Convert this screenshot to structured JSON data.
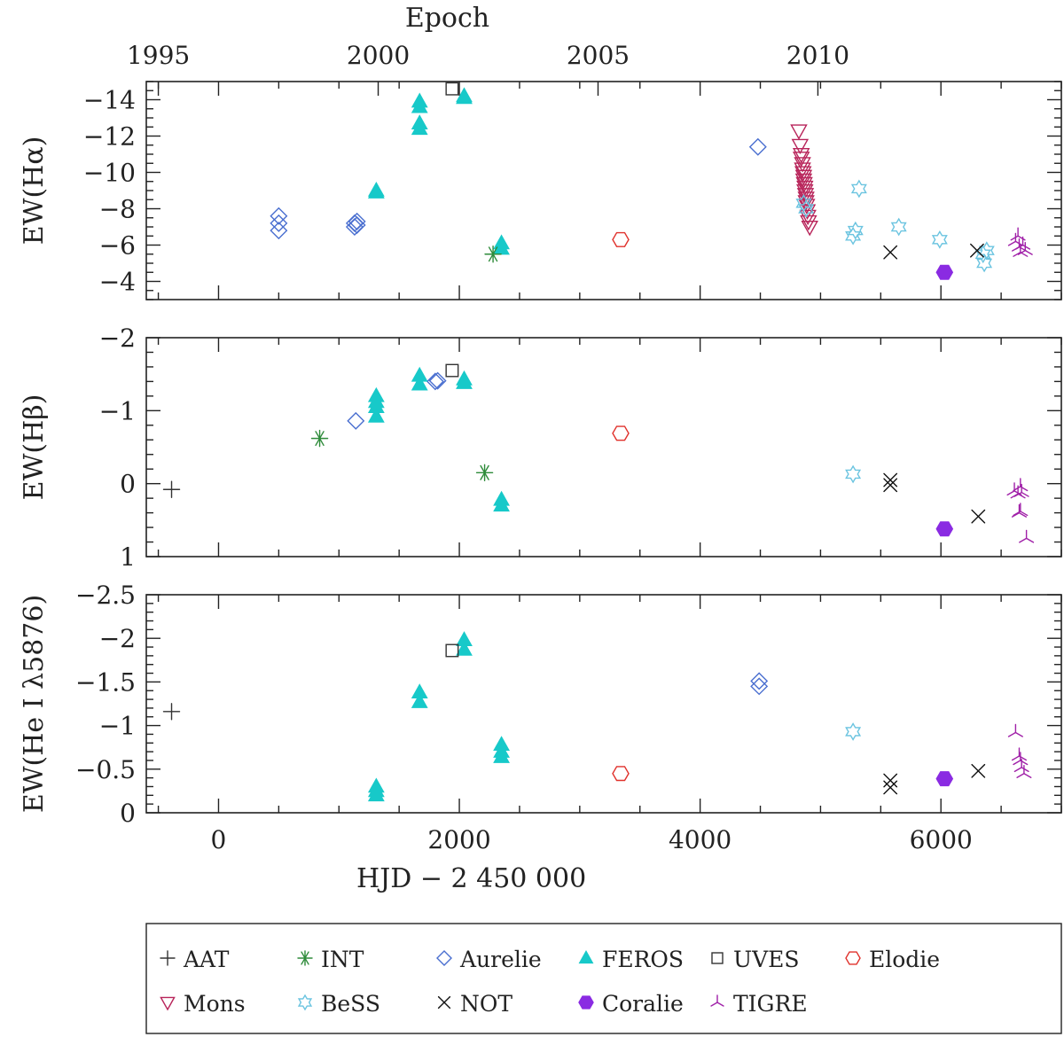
{
  "chart_data": {
    "type": "scatter",
    "title": "",
    "top_axis": {
      "label": "Epoch",
      "ticks": [
        {
          "label": "1995",
          "hjd": -500
        },
        {
          "label": "2000",
          "hjd": 1326
        },
        {
          "label": "2005",
          "hjd": 3152
        },
        {
          "label": "2010",
          "hjd": 4978
        }
      ]
    },
    "xlabel": "HJD  −  2 450 000",
    "xlim": [
      -600,
      7000
    ],
    "x_ticks": [
      0,
      2000,
      4000,
      6000
    ],
    "x_tick_labels": [
      "0",
      "2000",
      "4000",
      "6000"
    ],
    "panels": [
      {
        "id": "halpha",
        "ylabel": "EW(Hα)",
        "ylim": [
          -15,
          -3
        ],
        "y_ticks": [
          -14,
          -12,
          -10,
          -8,
          -6,
          -4
        ],
        "y_tick_labels": [
          "−14",
          "−12",
          "−10",
          "−8",
          "−6",
          "−4"
        ],
        "series": [
          {
            "name": "Aurelie",
            "points": [
              [
                500,
                -7.6
              ],
              [
                500,
                -7.2
              ],
              [
                500,
                -6.8
              ],
              [
                1130,
                -7.2
              ],
              [
                1130,
                -7.0
              ],
              [
                1150,
                -7.3
              ],
              [
                1150,
                -7.1
              ],
              [
                4480,
                -11.4
              ]
            ]
          },
          {
            "name": "FEROS",
            "points": [
              [
                1310,
                -8.9
              ],
              [
                1310,
                -9.0
              ],
              [
                1670,
                -13.6
              ],
              [
                1670,
                -13.9
              ],
              [
                1670,
                -12.4
              ],
              [
                1670,
                -12.7
              ],
              [
                2040,
                -14.1
              ],
              [
                2040,
                -14.2
              ],
              [
                2350,
                -5.8
              ],
              [
                2350,
                -6.1
              ]
            ]
          },
          {
            "name": "INT",
            "points": [
              [
                2280,
                -5.5
              ]
            ]
          },
          {
            "name": "UVES",
            "points": [
              [
                1940,
                -14.6
              ]
            ]
          },
          {
            "name": "Elodie",
            "points": [
              [
                3340,
                -6.3
              ]
            ]
          },
          {
            "name": "Mons",
            "points": [
              [
                4820,
                -12.3
              ],
              [
                4830,
                -11.5
              ],
              [
                4840,
                -11.0
              ],
              [
                4840,
                -10.8
              ],
              [
                4850,
                -10.5
              ],
              [
                4850,
                -10.2
              ],
              [
                4855,
                -10.0
              ],
              [
                4860,
                -9.8
              ],
              [
                4860,
                -9.6
              ],
              [
                4865,
                -9.4
              ],
              [
                4870,
                -9.2
              ],
              [
                4870,
                -9.0
              ],
              [
                4875,
                -8.8
              ],
              [
                4880,
                -8.6
              ],
              [
                4880,
                -8.4
              ],
              [
                4885,
                -8.2
              ],
              [
                4890,
                -7.9
              ],
              [
                4895,
                -7.6
              ],
              [
                4900,
                -7.3
              ],
              [
                4910,
                -7.0
              ]
            ]
          },
          {
            "name": "BeSS",
            "points": [
              [
                4860,
                -8.3
              ],
              [
                4880,
                -8.0
              ],
              [
                5270,
                -6.5
              ],
              [
                5290,
                -6.8
              ],
              [
                5320,
                -9.1
              ],
              [
                5650,
                -7.0
              ],
              [
                5990,
                -6.3
              ],
              [
                6350,
                -5.5
              ],
              [
                6360,
                -5.0
              ],
              [
                6380,
                -5.7
              ]
            ]
          },
          {
            "name": "NOT",
            "points": [
              [
                5580,
                -5.6
              ],
              [
                6300,
                -5.7
              ]
            ]
          },
          {
            "name": "Coralie",
            "points": [
              [
                6030,
                -4.5
              ]
            ]
          },
          {
            "name": "TIGRE",
            "points": [
              [
                6620,
                -6.2
              ],
              [
                6640,
                -6.5
              ],
              [
                6650,
                -5.9
              ],
              [
                6660,
                -5.6
              ],
              [
                6680,
                -6.0
              ],
              [
                6700,
                -5.7
              ]
            ]
          }
        ]
      },
      {
        "id": "hbeta",
        "ylabel": "EW(Hβ)",
        "ylim": [
          -2,
          1
        ],
        "y_ticks": [
          -2,
          -1,
          0,
          1
        ],
        "y_tick_labels": [
          "−2",
          "−1",
          "0",
          "1"
        ],
        "series": [
          {
            "name": "AAT",
            "points": [
              [
                -390,
                0.08
              ]
            ]
          },
          {
            "name": "INT",
            "points": [
              [
                840,
                -0.62
              ],
              [
                2210,
                -0.15
              ]
            ]
          },
          {
            "name": "Aurelie",
            "points": [
              [
                1140,
                -0.86
              ],
              [
                1800,
                -1.4
              ],
              [
                1820,
                -1.41
              ]
            ]
          },
          {
            "name": "FEROS",
            "points": [
              [
                1310,
                -1.2
              ],
              [
                1310,
                -1.12
              ],
              [
                1310,
                -1.05
              ],
              [
                1310,
                -0.92
              ],
              [
                1670,
                -1.48
              ],
              [
                1670,
                -1.36
              ],
              [
                2040,
                -1.43
              ],
              [
                2040,
                -1.38
              ],
              [
                2350,
                0.22
              ],
              [
                2350,
                0.3
              ]
            ]
          },
          {
            "name": "UVES",
            "points": [
              [
                1940,
                -1.55
              ]
            ]
          },
          {
            "name": "Elodie",
            "points": [
              [
                3340,
                -0.69
              ]
            ]
          },
          {
            "name": "BeSS",
            "points": [
              [
                5270,
                -0.13
              ]
            ]
          },
          {
            "name": "NOT",
            "points": [
              [
                5580,
                -0.05
              ],
              [
                5580,
                0.02
              ],
              [
                6310,
                0.45
              ]
            ]
          },
          {
            "name": "Coralie",
            "points": [
              [
                6030,
                0.62
              ]
            ]
          },
          {
            "name": "TIGRE",
            "points": [
              [
                6610,
                0.1
              ],
              [
                6640,
                0.14
              ],
              [
                6650,
                0.4
              ],
              [
                6660,
                0.04
              ],
              [
                6670,
                0.12
              ],
              [
                6710,
                0.75
              ],
              [
                6660,
                0.38
              ]
            ]
          }
        ]
      },
      {
        "id": "hei",
        "ylabel": "EW(He I λ5876)",
        "ylim": [
          -2.5,
          0
        ],
        "y_ticks": [
          -2.5,
          -2,
          -1.5,
          -1,
          -0.5,
          0
        ],
        "y_tick_labels": [
          "−2.5",
          "−2",
          "−1.5",
          "−1",
          "−0.5",
          "0"
        ],
        "series": [
          {
            "name": "AAT",
            "points": [
              [
                -390,
                -1.16
              ]
            ]
          },
          {
            "name": "FEROS",
            "points": [
              [
                1310,
                -0.3
              ],
              [
                1310,
                -0.25
              ],
              [
                1310,
                -0.2
              ],
              [
                1670,
                -1.38
              ],
              [
                1670,
                -1.27
              ],
              [
                2040,
                -1.98
              ],
              [
                2040,
                -1.87
              ],
              [
                2350,
                -0.78
              ],
              [
                2350,
                -0.7
              ],
              [
                2350,
                -0.64
              ]
            ]
          },
          {
            "name": "UVES",
            "points": [
              [
                1940,
                -1.86
              ]
            ]
          },
          {
            "name": "Aurelie",
            "points": [
              [
                4490,
                -1.51
              ],
              [
                4490,
                -1.45
              ]
            ]
          },
          {
            "name": "Elodie",
            "points": [
              [
                3340,
                -0.45
              ]
            ]
          },
          {
            "name": "BeSS",
            "points": [
              [
                5270,
                -0.93
              ]
            ]
          },
          {
            "name": "NOT",
            "points": [
              [
                5580,
                -0.37
              ],
              [
                5580,
                -0.29
              ],
              [
                6310,
                -0.48
              ]
            ]
          },
          {
            "name": "Coralie",
            "points": [
              [
                6030,
                -0.39
              ]
            ]
          },
          {
            "name": "TIGRE",
            "points": [
              [
                6620,
                -0.92
              ],
              [
                6650,
                -0.65
              ],
              [
                6660,
                -0.6
              ],
              [
                6670,
                -0.52
              ],
              [
                6690,
                -0.45
              ]
            ]
          }
        ]
      }
    ],
    "legend": {
      "placement": "bottom",
      "entries": [
        {
          "name": "AAT",
          "label": "AAT",
          "marker": "plus",
          "color": "#333333"
        },
        {
          "name": "INT",
          "label": "INT",
          "marker": "asterisk",
          "color": "#2e8b3a"
        },
        {
          "name": "Aurelie",
          "label": "Aurelie",
          "marker": "diamond-open",
          "color": "#4a6fd0"
        },
        {
          "name": "FEROS",
          "label": "FEROS",
          "marker": "triangle-filled",
          "color": "#17c9c9"
        },
        {
          "name": "UVES",
          "label": "UVES",
          "marker": "square-open",
          "color": "#333333"
        },
        {
          "name": "Elodie",
          "label": "Elodie",
          "marker": "hexagon-open",
          "color": "#e0312b"
        },
        {
          "name": "Mons",
          "label": "Mons",
          "marker": "triangle-down-open",
          "color": "#b8245a"
        },
        {
          "name": "BeSS",
          "label": "BeSS",
          "marker": "star-open",
          "color": "#6bc4e0"
        },
        {
          "name": "NOT",
          "label": "NOT",
          "marker": "cross",
          "color": "#111111"
        },
        {
          "name": "Coralie",
          "label": "Coralie",
          "marker": "hexagon-filled",
          "color": "#8a2be2"
        },
        {
          "name": "TIGRE",
          "label": "TIGRE",
          "marker": "tripod",
          "color": "#a020a8"
        }
      ]
    }
  }
}
